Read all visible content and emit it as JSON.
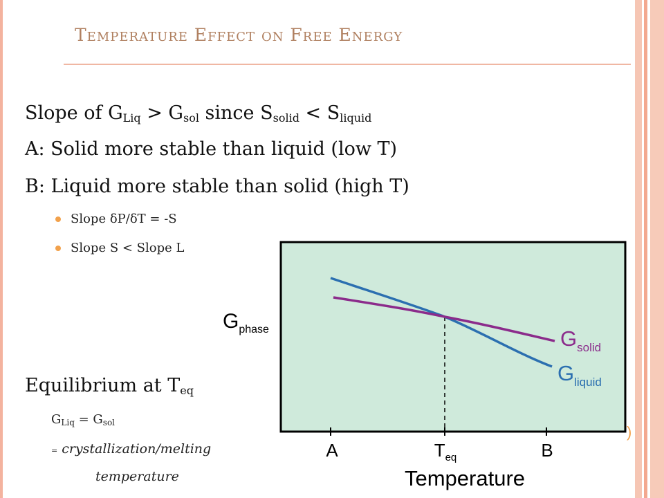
{
  "title": "Temperature Effect on Free Energy",
  "line1": {
    "pre": "Slope of G",
    "sub1": "Liq",
    "mid1": " > G",
    "sub2": "sol",
    "mid2": " since S",
    "sub3": "solid",
    "mid3": " < S",
    "sub4": "liquid"
  },
  "line2": "A: Solid more stable than liquid (low T)",
  "line3": "B: Liquid more stable than solid (high T)",
  "bullets": [
    "Slope  δP/δT = -S",
    "Slope S < Slope L"
  ],
  "equilibrium": {
    "pre": "Equilibrium at T",
    "sub": "eq"
  },
  "eq_line": {
    "g1": "G",
    "s1": "Liq",
    "mid": " = G",
    "s2": "sol"
  },
  "cryst": {
    "sign": "=",
    "text": "crystallization/melting"
  },
  "temperature_word": "temperature",
  "paren": ")",
  "figure": {
    "y_label": "G",
    "y_sub": "phase",
    "x_label": "Temperature",
    "ticks": [
      {
        "label": "A",
        "sub": ""
      },
      {
        "label": "T",
        "sub": "eq"
      },
      {
        "label": "B",
        "sub": ""
      }
    ],
    "solid_label": "G",
    "solid_sub": "solid",
    "liquid_label": "G",
    "liquid_sub": "liquid",
    "colors": {
      "panel": "#cfeadb",
      "solid": "#8b2b8b",
      "liquid": "#2b6fb0",
      "axis": "#000000"
    }
  }
}
